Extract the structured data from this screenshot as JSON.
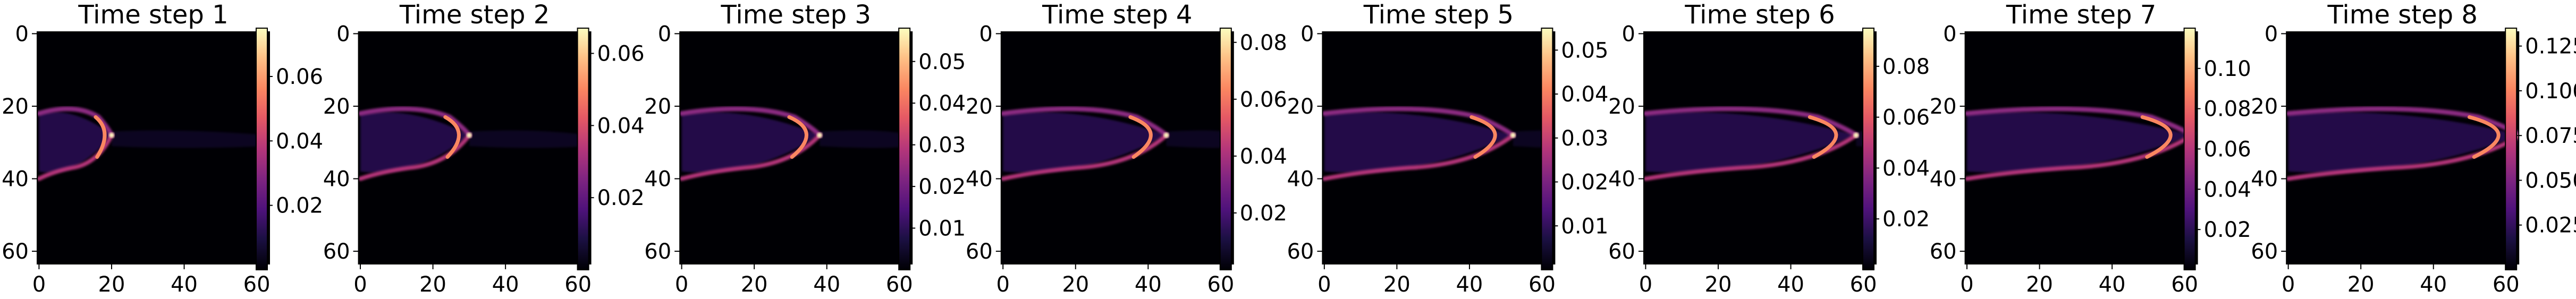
{
  "figure": {
    "chart_data": [
      {
        "type": "heatmap",
        "title": "Time step 1",
        "xticks": [
          "0",
          "20",
          "40",
          "60"
        ],
        "yticks": [
          "0",
          "20",
          "40",
          "60"
        ],
        "xlim": [
          0,
          63
        ],
        "ylim": [
          63,
          0
        ],
        "colormap": "magma",
        "colorbar_ticks": [
          "0.02",
          "0.04",
          "0.06"
        ],
        "colorbar_values": [
          0.02,
          0.04,
          0.06
        ],
        "colorbar_range": [
          0,
          0.075
        ],
        "front_x": 20,
        "grid": false,
        "legend": "none"
      },
      {
        "type": "heatmap",
        "title": "Time step 2",
        "xticks": [
          "0",
          "20",
          "40",
          "60"
        ],
        "yticks": [
          "0",
          "20",
          "40",
          "60"
        ],
        "xlim": [
          0,
          63
        ],
        "ylim": [
          63,
          0
        ],
        "colormap": "magma",
        "colorbar_ticks": [
          "0.02",
          "0.04",
          "0.06"
        ],
        "colorbar_values": [
          0.02,
          0.04,
          0.06
        ],
        "colorbar_range": [
          0,
          0.067
        ],
        "front_x": 30,
        "grid": false,
        "legend": "none"
      },
      {
        "type": "heatmap",
        "title": "Time step 3",
        "xticks": [
          "0",
          "20",
          "40",
          "60"
        ],
        "yticks": [
          "0",
          "20",
          "40",
          "60"
        ],
        "xlim": [
          0,
          63
        ],
        "ylim": [
          63,
          0
        ],
        "colormap": "magma",
        "colorbar_ticks": [
          "0.01",
          "0.02",
          "0.03",
          "0.04",
          "0.05"
        ],
        "colorbar_values": [
          0.01,
          0.02,
          0.03,
          0.04,
          0.05
        ],
        "colorbar_range": [
          0,
          0.058
        ],
        "front_x": 38,
        "grid": false,
        "legend": "none"
      },
      {
        "type": "heatmap",
        "title": "Time step 4",
        "xticks": [
          "0",
          "20",
          "40",
          "60"
        ],
        "yticks": [
          "0",
          "20",
          "40",
          "60"
        ],
        "xlim": [
          0,
          63
        ],
        "ylim": [
          63,
          0
        ],
        "colormap": "magma",
        "colorbar_ticks": [
          "0.02",
          "0.04",
          "0.06",
          "0.08"
        ],
        "colorbar_values": [
          0.02,
          0.04,
          0.06,
          0.08
        ],
        "colorbar_range": [
          0,
          0.085
        ],
        "front_x": 45,
        "grid": false,
        "legend": "none"
      },
      {
        "type": "heatmap",
        "title": "Time step 5",
        "xticks": [
          "0",
          "20",
          "40",
          "60"
        ],
        "yticks": [
          "0",
          "20",
          "40",
          "60"
        ],
        "xlim": [
          0,
          63
        ],
        "ylim": [
          63,
          0
        ],
        "colormap": "magma",
        "colorbar_ticks": [
          "0.01",
          "0.02",
          "0.03",
          "0.04",
          "0.05"
        ],
        "colorbar_values": [
          0.01,
          0.02,
          0.03,
          0.04,
          0.05
        ],
        "colorbar_range": [
          0,
          0.055
        ],
        "front_x": 52,
        "grid": false,
        "legend": "none"
      },
      {
        "type": "heatmap",
        "title": "Time step 6",
        "xticks": [
          "0",
          "20",
          "40",
          "60"
        ],
        "yticks": [
          "0",
          "20",
          "40",
          "60"
        ],
        "xlim": [
          0,
          63
        ],
        "ylim": [
          63,
          0
        ],
        "colormap": "magma",
        "colorbar_ticks": [
          "0.02",
          "0.04",
          "0.06",
          "0.08"
        ],
        "colorbar_values": [
          0.02,
          0.04,
          0.06,
          0.08
        ],
        "colorbar_range": [
          0,
          0.095
        ],
        "front_x": 58,
        "grid": false,
        "legend": "none"
      },
      {
        "type": "heatmap",
        "title": "Time step 7",
        "xticks": [
          "0",
          "20",
          "40",
          "60"
        ],
        "yticks": [
          "0",
          "20",
          "40",
          "60"
        ],
        "xlim": [
          0,
          63
        ],
        "ylim": [
          63,
          0
        ],
        "colormap": "magma",
        "colorbar_ticks": [
          "0.02",
          "0.04",
          "0.06",
          "0.08",
          "0.10"
        ],
        "colorbar_values": [
          0.02,
          0.04,
          0.06,
          0.08,
          0.1
        ],
        "colorbar_range": [
          0,
          0.12
        ],
        "front_x": 62,
        "grid": false,
        "legend": "none"
      },
      {
        "type": "heatmap",
        "title": "Time step 8",
        "xticks": [
          "0",
          "20",
          "40",
          "60"
        ],
        "yticks": [
          "0",
          "20",
          "40",
          "60"
        ],
        "xlim": [
          0,
          63
        ],
        "ylim": [
          63,
          0
        ],
        "colormap": "magma",
        "colorbar_ticks": [
          "0.025",
          "0.050",
          "0.075",
          "0.100",
          "0.125"
        ],
        "colorbar_values": [
          0.025,
          0.05,
          0.075,
          0.1,
          0.125
        ],
        "colorbar_range": [
          0,
          0.135
        ],
        "front_x": 64,
        "grid": false,
        "legend": "none"
      }
    ]
  }
}
